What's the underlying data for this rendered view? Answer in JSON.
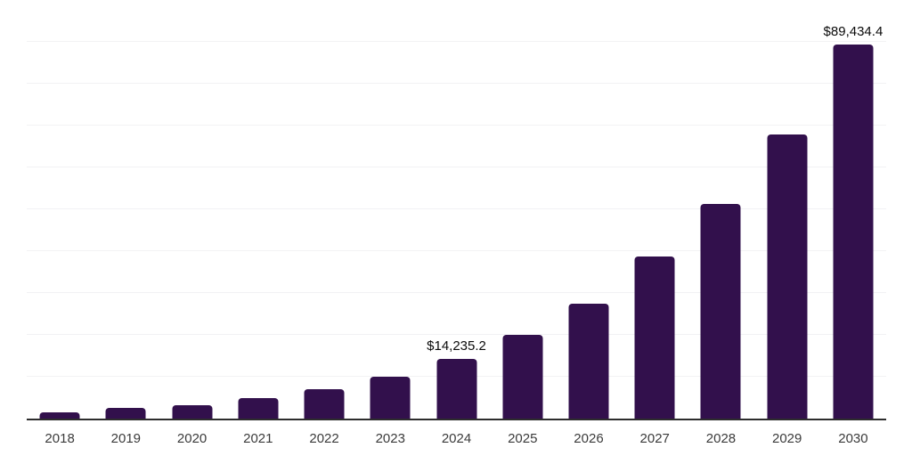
{
  "chart_data": {
    "type": "bar",
    "title": "",
    "xlabel": "",
    "ylabel": "",
    "categories": [
      "2018",
      "2019",
      "2020",
      "2021",
      "2022",
      "2023",
      "2024",
      "2025",
      "2026",
      "2027",
      "2028",
      "2029",
      "2030"
    ],
    "values": [
      1500,
      2500,
      3200,
      4800,
      7000,
      10100,
      14235.2,
      20000,
      27400,
      38800,
      51200,
      67800,
      89434.4
    ],
    "data_labels": [
      "",
      "",
      "",
      "",
      "",
      "",
      "$14,235.2",
      "",
      "",
      "",
      "",
      "",
      "$89,434.4"
    ],
    "ylim": [
      0,
      100000
    ],
    "gridline_step": 10000,
    "grid": true,
    "legend": false,
    "y_tick_labels_visible": false,
    "colors": {
      "bar": "#32104C",
      "gridline": "#f2f2f4",
      "axis": "#2d2d2d",
      "value_label": "#0a0a0a",
      "tick_label": "#3b3b3b",
      "background": "#ffffff"
    }
  }
}
